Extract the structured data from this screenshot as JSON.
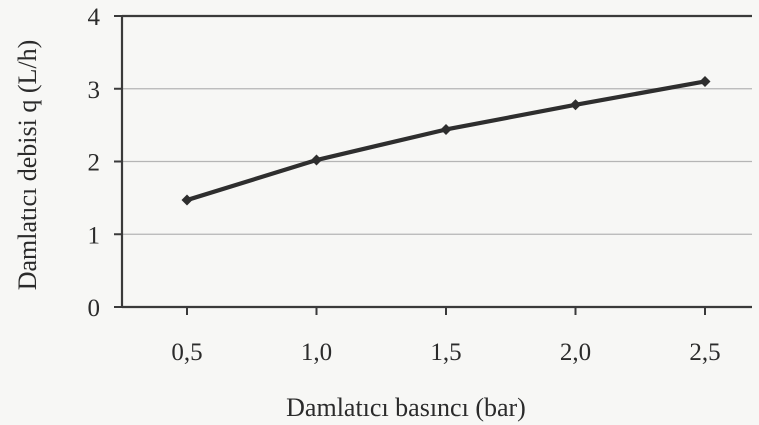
{
  "chart_data": {
    "type": "line",
    "title": "",
    "xlabel": "Damlatıcı basıncı (bar)",
    "ylabel": "Damlatıcı debisi q (L/h)",
    "x": [
      0.5,
      1.0,
      1.5,
      2.0,
      2.5
    ],
    "x_tick_labels": [
      "0,5",
      "1,0",
      "1,5",
      "2,0",
      "2,5"
    ],
    "y_tick_labels": [
      "0",
      "1",
      "2",
      "3",
      "4"
    ],
    "ylim": [
      0,
      4
    ],
    "grid": "horizontal",
    "legend": "none",
    "series": [
      {
        "values": [
          1.47,
          2.02,
          2.44,
          2.78,
          3.1
        ]
      }
    ],
    "colors": {
      "line": "#2e2e2e",
      "marker": "#2e2e2e",
      "grid": "#b5b5b5",
      "axis": "#3a3a3a",
      "background": "#f7f7f5"
    }
  }
}
